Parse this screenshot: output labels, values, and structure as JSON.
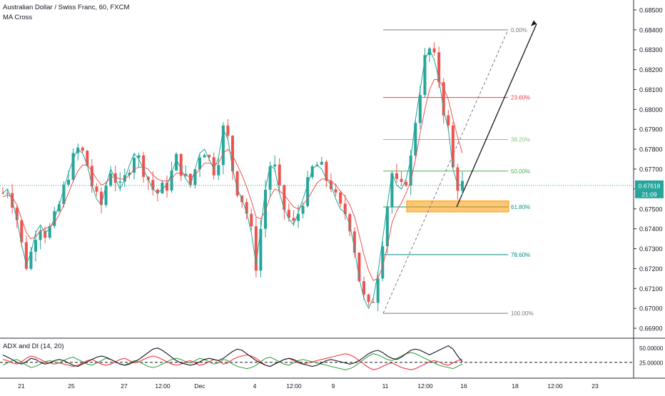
{
  "chart_data": {
    "type": "candlestick",
    "title": "Australian Dollar / Swiss Franc, 60, FXCM",
    "indicator_label": "MA Cross",
    "last_price": "0.67618",
    "countdown": "21:09",
    "y_ticks": [
      "0.68500",
      "0.68400",
      "0.68300",
      "0.68200",
      "0.68100",
      "0.68000",
      "0.67900",
      "0.67800",
      "0.67700",
      "0.67600",
      "0.67500",
      "0.67400",
      "0.67300",
      "0.67200",
      "0.67100",
      "0.67000",
      "0.66900"
    ],
    "ylim": [
      0.6685,
      0.6855
    ],
    "x_ticks": [
      "21",
      "25",
      "27",
      "12:00",
      "Dec",
      "4",
      "12:00",
      "9",
      "11",
      "12:00",
      "16",
      "18",
      "12:00",
      "23"
    ],
    "fibonacci": [
      {
        "label": "0.00%",
        "price": 0.684,
        "color": "#787b86"
      },
      {
        "label": "23.60%",
        "price": 0.6806,
        "color": "#f23645"
      },
      {
        "label": "38.20%",
        "price": 0.67849,
        "color": "#81c784"
      },
      {
        "label": "50.00%",
        "price": 0.6769,
        "color": "#4caf50"
      },
      {
        "label": "61.80%",
        "price": 0.6751,
        "color": "#089981"
      },
      {
        "label": "78.60%",
        "price": 0.6727,
        "color": "#00897b"
      },
      {
        "label": "100.00%",
        "price": 0.66975,
        "color": "#787b86"
      }
    ],
    "series": [
      {
        "values": [
          0.6758,
          0.676,
          0.6754,
          0.6745,
          0.6732,
          0.6722,
          0.6728,
          0.6738,
          0.6742,
          0.6738,
          0.674,
          0.6745,
          0.6752,
          0.676,
          0.6768,
          0.6775,
          0.678,
          0.6778,
          0.6772,
          0.6762,
          0.6755,
          0.6752,
          0.6762,
          0.677,
          0.6765,
          0.676,
          0.6765,
          0.6772,
          0.6778,
          0.6775,
          0.677,
          0.6765,
          0.676,
          0.6758,
          0.676,
          0.6762,
          0.6768,
          0.6775,
          0.677,
          0.6765,
          0.6762,
          0.677,
          0.6778,
          0.678,
          0.6775,
          0.677,
          0.6776,
          0.679,
          0.6785,
          0.677,
          0.676,
          0.6755,
          0.6748,
          0.6738,
          0.6722,
          0.674,
          0.676,
          0.6772,
          0.677,
          0.6758,
          0.675,
          0.6745,
          0.6742,
          0.6748,
          0.6755,
          0.6762,
          0.677,
          0.6772,
          0.677,
          0.6765,
          0.6762,
          0.6755,
          0.675,
          0.6748,
          0.6742,
          0.673,
          0.6715,
          0.6705,
          0.67,
          0.6705,
          0.6718,
          0.6735,
          0.6752,
          0.6768,
          0.6762,
          0.676,
          0.6765,
          0.6775,
          0.6795,
          0.681,
          0.6825,
          0.683,
          0.6825,
          0.6815,
          0.68,
          0.679,
          0.677,
          0.6762,
          0.6762
        ]
      },
      {
        "values": [
          0.6756,
          0.6757,
          0.6756,
          0.6752,
          0.6745,
          0.6738,
          0.6735,
          0.6736,
          0.6739,
          0.674,
          0.6741,
          0.6743,
          0.6747,
          0.6752,
          0.6758,
          0.6764,
          0.6769,
          0.6772,
          0.6772,
          0.6769,
          0.6765,
          0.6762,
          0.6763,
          0.6766,
          0.6766,
          0.6765,
          0.6765,
          0.6767,
          0.677,
          0.6771,
          0.6771,
          0.677,
          0.6767,
          0.6765,
          0.6764,
          0.6764,
          0.6765,
          0.6768,
          0.6768,
          0.6767,
          0.6766,
          0.6767,
          0.677,
          0.6773,
          0.6773,
          0.6772,
          0.6773,
          0.6778,
          0.678,
          0.6777,
          0.6772,
          0.6767,
          0.6761,
          0.6754,
          0.6746,
          0.6745,
          0.6749,
          0.6756,
          0.676,
          0.6759,
          0.6757,
          0.6754,
          0.6751,
          0.675,
          0.6752,
          0.6755,
          0.6759,
          0.6763,
          0.6765,
          0.6765,
          0.6764,
          0.6762,
          0.6759,
          0.6756,
          0.6752,
          0.6746,
          0.6737,
          0.6727,
          0.6719,
          0.6714,
          0.6715,
          0.6721,
          0.6731,
          0.6743,
          0.6749,
          0.6753,
          0.6758,
          0.6764,
          0.6775,
          0.6788,
          0.68,
          0.681,
          0.6815,
          0.6815,
          0.6811,
          0.6805,
          0.6795,
          0.6786,
          0.6778
        ]
      }
    ],
    "adx": {
      "title": "ADX and DI (14, 20)",
      "ylim": [
        0,
        62
      ],
      "y_ticks": [
        "50.00000",
        "25.00000"
      ],
      "hline": 25,
      "adx": [
        38,
        34,
        30,
        25,
        22,
        26,
        32,
        30,
        25,
        22,
        24,
        28,
        30,
        28,
        24,
        20,
        18,
        22,
        26,
        30,
        34,
        36,
        34,
        30,
        26,
        22,
        20,
        22,
        26,
        30,
        36,
        42,
        48,
        50,
        46,
        40,
        34,
        28,
        24,
        22,
        20,
        22,
        26,
        30,
        32,
        30,
        28,
        32,
        38,
        44,
        48,
        46,
        40,
        34,
        28,
        24,
        20,
        18,
        22,
        26,
        30,
        32,
        30,
        26,
        22,
        20,
        18,
        20,
        24,
        28,
        30,
        28,
        26,
        24,
        22,
        24,
        28,
        34,
        40,
        44,
        46,
        42,
        36,
        32,
        30,
        34,
        40,
        46,
        48,
        46,
        42,
        38,
        42,
        46,
        50,
        54,
        48,
        36,
        26
      ],
      "plus_di": [
        20,
        24,
        28,
        30,
        26,
        20,
        16,
        18,
        22,
        26,
        28,
        26,
        24,
        28,
        32,
        34,
        30,
        26,
        22,
        20,
        24,
        28,
        32,
        30,
        26,
        22,
        20,
        24,
        28,
        26,
        22,
        18,
        16,
        18,
        22,
        26,
        30,
        32,
        30,
        26,
        24,
        28,
        32,
        30,
        26,
        22,
        24,
        30,
        28,
        22,
        18,
        16,
        14,
        16,
        20,
        26,
        32,
        34,
        30,
        26,
        22,
        20,
        24,
        28,
        30,
        28,
        26,
        24,
        22,
        20,
        18,
        16,
        14,
        12,
        14,
        18,
        24,
        30,
        36,
        40,
        38,
        34,
        30,
        28,
        32,
        36,
        40,
        42,
        40,
        36,
        32,
        28,
        24,
        20,
        18,
        16,
        14,
        18,
        22
      ],
      "minus_di": [
        30,
        28,
        24,
        22,
        26,
        32,
        36,
        34,
        30,
        26,
        24,
        22,
        24,
        22,
        20,
        18,
        20,
        24,
        28,
        30,
        26,
        22,
        20,
        22,
        26,
        30,
        32,
        28,
        24,
        26,
        30,
        34,
        36,
        34,
        30,
        26,
        22,
        20,
        22,
        26,
        28,
        24,
        20,
        22,
        26,
        30,
        28,
        22,
        24,
        30,
        34,
        36,
        38,
        36,
        32,
        26,
        20,
        18,
        22,
        26,
        30,
        32,
        28,
        24,
        22,
        24,
        26,
        28,
        30,
        32,
        34,
        36,
        38,
        40,
        38,
        34,
        28,
        22,
        16,
        12,
        14,
        18,
        22,
        24,
        20,
        16,
        14,
        12,
        14,
        18,
        22,
        26,
        28,
        26,
        22,
        20,
        24,
        28,
        30
      ]
    }
  }
}
